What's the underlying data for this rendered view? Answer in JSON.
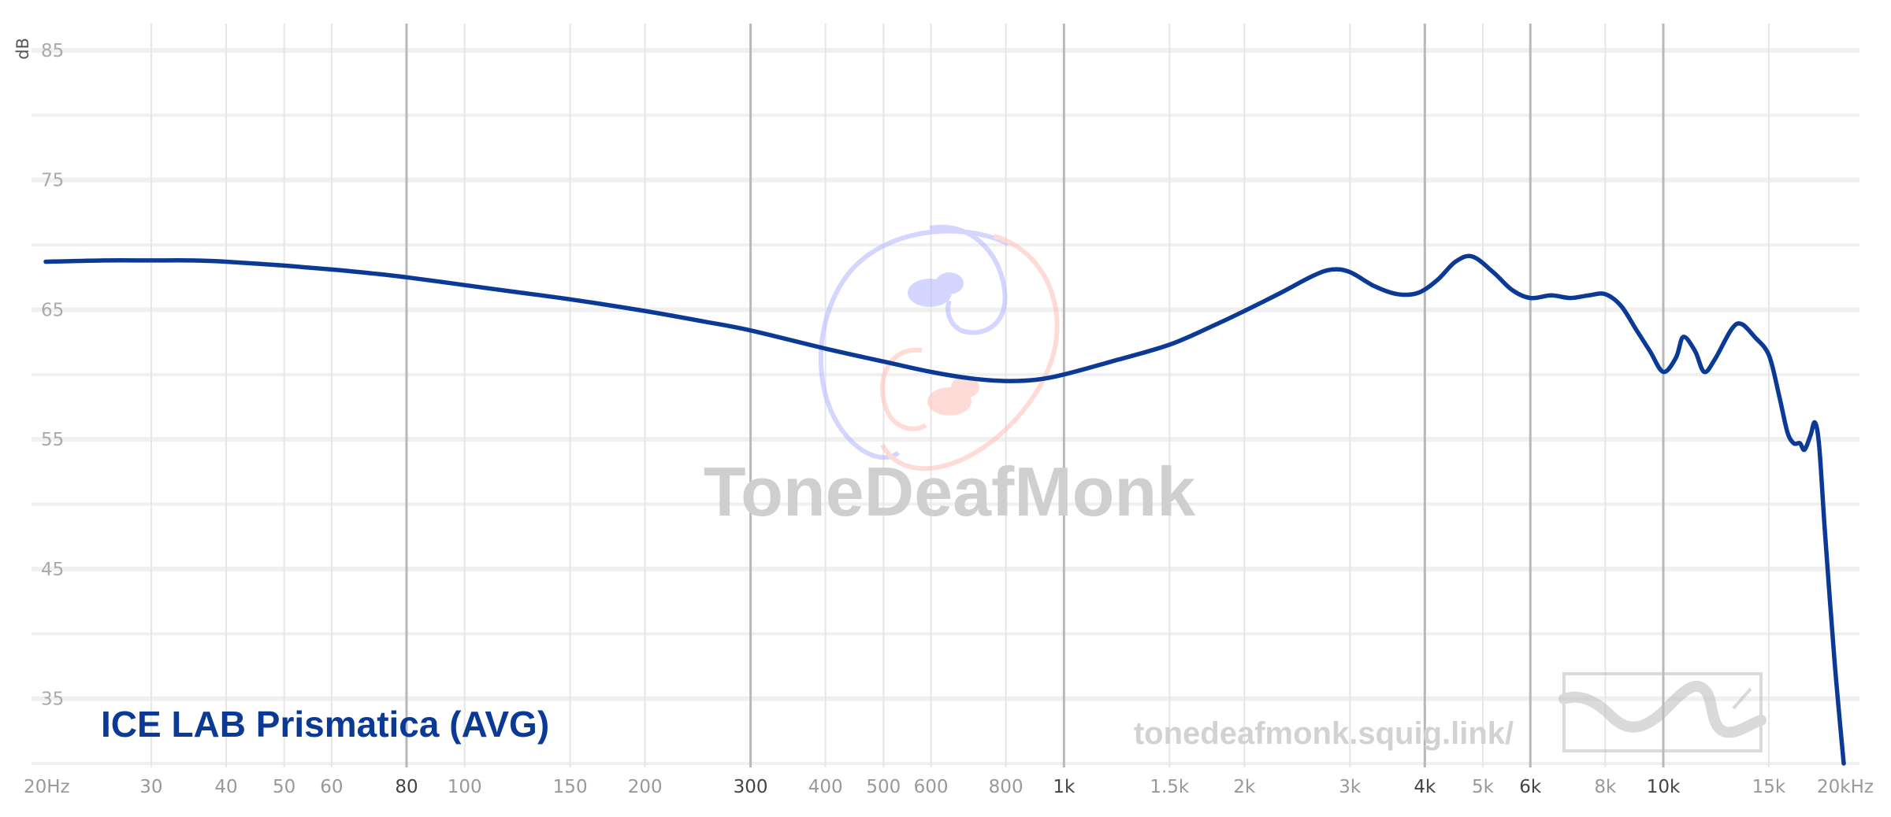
{
  "chart_data": {
    "type": "line",
    "y_unit": "dB",
    "x_scale": "log",
    "xlim": [
      20,
      20000
    ],
    "ylim": [
      30,
      85
    ],
    "y_ticks": [
      {
        "value": 85,
        "label": "85"
      },
      {
        "value": 75,
        "label": "75"
      },
      {
        "value": 65,
        "label": "65"
      },
      {
        "value": 55,
        "label": "55"
      },
      {
        "value": 45,
        "label": "45"
      },
      {
        "value": 35,
        "label": "35"
      }
    ],
    "x_ticks": [
      {
        "value": 20,
        "label": "20Hz",
        "major": false
      },
      {
        "value": 30,
        "label": "30",
        "major": false
      },
      {
        "value": 40,
        "label": "40",
        "major": false
      },
      {
        "value": 50,
        "label": "50",
        "major": false
      },
      {
        "value": 60,
        "label": "60",
        "major": false
      },
      {
        "value": 80,
        "label": "80",
        "major": true
      },
      {
        "value": 100,
        "label": "100",
        "major": false
      },
      {
        "value": 150,
        "label": "150",
        "major": false
      },
      {
        "value": 200,
        "label": "200",
        "major": false
      },
      {
        "value": 300,
        "label": "300",
        "major": true
      },
      {
        "value": 400,
        "label": "400",
        "major": false
      },
      {
        "value": 500,
        "label": "500",
        "major": false
      },
      {
        "value": 600,
        "label": "600",
        "major": false
      },
      {
        "value": 800,
        "label": "800",
        "major": false
      },
      {
        "value": 1000,
        "label": "1k",
        "major": true
      },
      {
        "value": 1500,
        "label": "1.5k",
        "major": false
      },
      {
        "value": 2000,
        "label": "2k",
        "major": false
      },
      {
        "value": 3000,
        "label": "3k",
        "major": false
      },
      {
        "value": 4000,
        "label": "4k",
        "major": true
      },
      {
        "value": 5000,
        "label": "5k",
        "major": false
      },
      {
        "value": 6000,
        "label": "6k",
        "major": true
      },
      {
        "value": 8000,
        "label": "8k",
        "major": false
      },
      {
        "value": 10000,
        "label": "10k",
        "major": true
      },
      {
        "value": 15000,
        "label": "15k",
        "major": false
      },
      {
        "value": 20000,
        "label": "20kHz",
        "major": false
      }
    ],
    "series": [
      {
        "name": "ICE LAB Prismatica (AVG)",
        "color": "#0a3a96",
        "points": [
          [
            20,
            68.7
          ],
          [
            25,
            68.8
          ],
          [
            30,
            68.8
          ],
          [
            35,
            68.8
          ],
          [
            40,
            68.7
          ],
          [
            50,
            68.4
          ],
          [
            60,
            68.1
          ],
          [
            70,
            67.8
          ],
          [
            80,
            67.5
          ],
          [
            100,
            66.9
          ],
          [
            120,
            66.4
          ],
          [
            150,
            65.8
          ],
          [
            200,
            64.9
          ],
          [
            250,
            64.1
          ],
          [
            300,
            63.4
          ],
          [
            400,
            62.0
          ],
          [
            500,
            61.0
          ],
          [
            600,
            60.2
          ],
          [
            700,
            59.7
          ],
          [
            800,
            59.5
          ],
          [
            900,
            59.6
          ],
          [
            1000,
            60.0
          ],
          [
            1200,
            61.0
          ],
          [
            1500,
            62.3
          ],
          [
            1800,
            63.9
          ],
          [
            2000,
            64.9
          ],
          [
            2300,
            66.3
          ],
          [
            2600,
            67.6
          ],
          [
            2800,
            68.1
          ],
          [
            3000,
            67.9
          ],
          [
            3300,
            66.8
          ],
          [
            3600,
            66.2
          ],
          [
            3900,
            66.3
          ],
          [
            4200,
            67.3
          ],
          [
            4500,
            68.7
          ],
          [
            4800,
            69.1
          ],
          [
            5200,
            67.9
          ],
          [
            5600,
            66.5
          ],
          [
            6000,
            65.9
          ],
          [
            6500,
            66.1
          ],
          [
            7000,
            65.9
          ],
          [
            7500,
            66.1
          ],
          [
            8000,
            66.2
          ],
          [
            8500,
            65.3
          ],
          [
            9000,
            63.5
          ],
          [
            9500,
            61.8
          ],
          [
            10000,
            60.2
          ],
          [
            10500,
            61.3
          ],
          [
            10800,
            62.9
          ],
          [
            11300,
            61.8
          ],
          [
            11700,
            60.2
          ],
          [
            12200,
            61.2
          ],
          [
            13000,
            63.5
          ],
          [
            13500,
            63.9
          ],
          [
            14200,
            62.9
          ],
          [
            15000,
            61.5
          ],
          [
            15600,
            58.4
          ],
          [
            16100,
            55.6
          ],
          [
            16500,
            54.7
          ],
          [
            16900,
            54.7
          ],
          [
            17200,
            54.2
          ],
          [
            17600,
            55.3
          ],
          [
            17900,
            56.3
          ],
          [
            18200,
            54.5
          ],
          [
            18600,
            48.0
          ],
          [
            19300,
            38.0
          ],
          [
            20000,
            30.0
          ]
        ]
      }
    ],
    "grid": true,
    "legend_position": "bottom-left"
  },
  "watermark": {
    "brand": "ToneDeafMonk",
    "url": "tonedeafmonk.squig.link/"
  }
}
